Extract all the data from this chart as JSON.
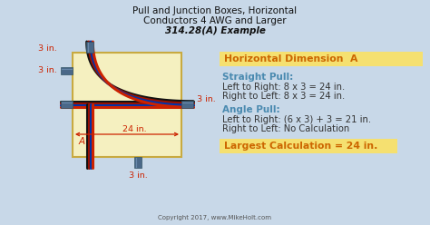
{
  "title_line1": "Pull and Junction Boxes, Horizontal",
  "title_line2": "Conductors 4 AWG and Larger",
  "title_line3": "314.28(A) Example",
  "bg_color": "#c8d8e8",
  "box_fill": "#f5f0c0",
  "box_edge": "#c8aa40",
  "highlight_box_color": "#f5e070",
  "header_text_color": "#cc6600",
  "section_title_color": "#4a8ab0",
  "body_text_color": "#333333",
  "highlight_text_color": "#cc6600",
  "copyright": "Copyright 2017, www.MikeHolt.com",
  "dim_label_color": "#cc2200",
  "wire_colors": [
    "#1a1a1a",
    "#cc0000",
    "#0044cc",
    "#cc3300"
  ],
  "connector_color": "#4a6888",
  "connector_light": "#6888aa"
}
